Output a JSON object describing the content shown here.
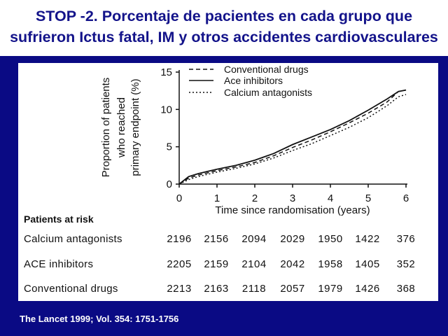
{
  "slide": {
    "title_line1": "STOP -2. Porcentaje de pacientes en cada grupo que",
    "title_line2": "sufrieron Ictus fatal, IM y otros accidentes cardiovasculares",
    "citation": "The Lancet 1999; Vol. 354: 1751-1756",
    "title_color": "#13138a",
    "background_color": "#0a0a84"
  },
  "chart_data": {
    "type": "line",
    "ylabel_line1": "Proportion of patients",
    "ylabel_line2": "who reached",
    "ylabel_line3": "primary endpoint (%)",
    "xlabel": "Time since randomisation (years)",
    "xlim": [
      0,
      6.2
    ],
    "ylim": [
      0,
      15
    ],
    "x_ticks": [
      "0",
      "1",
      "2",
      "3",
      "4",
      "5",
      "6"
    ],
    "y_ticks": [
      "0",
      "5",
      "10",
      "15"
    ],
    "legend_position": "top-right",
    "x": [
      0,
      0.25,
      0.5,
      0.75,
      1,
      1.5,
      2,
      2.5,
      3,
      3.5,
      4,
      4.5,
      5,
      5.5,
      5.8,
      6
    ],
    "series": [
      {
        "name": "Conventional drugs",
        "style": "dashed",
        "values": [
          0,
          0.8,
          1.2,
          1.5,
          1.8,
          2.3,
          2.9,
          3.8,
          4.9,
          5.9,
          7.0,
          8.2,
          9.5,
          11.0,
          12.4,
          12.6
        ]
      },
      {
        "name": "Ace inhibitors",
        "style": "solid",
        "values": [
          0,
          1.0,
          1.4,
          1.7,
          2.0,
          2.5,
          3.2,
          4.1,
          5.3,
          6.3,
          7.3,
          8.5,
          9.9,
          11.4,
          12.4,
          12.6
        ]
      },
      {
        "name": "Calcium antagonists",
        "style": "dotted",
        "values": [
          0,
          0.6,
          1.0,
          1.3,
          1.6,
          2.1,
          2.7,
          3.5,
          4.5,
          5.4,
          6.5,
          7.6,
          8.9,
          10.5,
          11.7,
          12.0
        ]
      }
    ],
    "risk_table": {
      "header": "Patients at risk",
      "rows": [
        {
          "label": "Calcium antagonists",
          "values": [
            "2196",
            "2156",
            "2094",
            "2029",
            "1950",
            "1422",
            "376"
          ]
        },
        {
          "label": "ACE inhibitors",
          "values": [
            "2205",
            "2159",
            "2104",
            "2042",
            "1958",
            "1405",
            "352"
          ]
        },
        {
          "label": "Conventional drugs",
          "values": [
            "2213",
            "2163",
            "2118",
            "2057",
            "1979",
            "1426",
            "368"
          ]
        }
      ]
    }
  }
}
